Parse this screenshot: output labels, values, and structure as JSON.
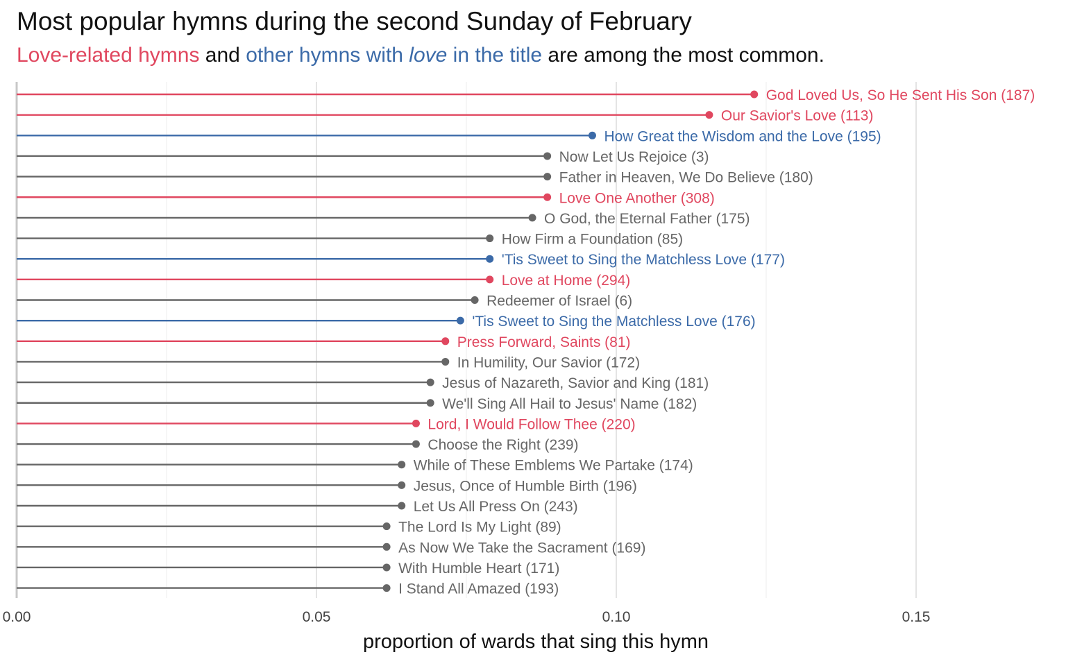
{
  "title": "Most popular hymns during the second Sunday of February",
  "subtitle": {
    "part1": "Love-related hymns",
    "part2": " and ",
    "part3": "other hymns with ",
    "part4": "love",
    "part5": " in the title",
    "part6": " are among the most common."
  },
  "colors": {
    "love_related": "#e0475f",
    "love_in_title": "#3b6aa8",
    "other": "#666666"
  },
  "chart_data": {
    "type": "lollipop",
    "xlabel": "proportion of wards that sing this hymn",
    "xlim": [
      0,
      0.17
    ],
    "xticks": [
      0,
      0.05,
      0.1,
      0.15
    ],
    "xtick_labels": [
      "0.00",
      "0.05",
      "0.10",
      "0.15"
    ],
    "grid": true,
    "items": [
      {
        "label": "God Loved Us, So He Sent His Son (187)",
        "value": 0.123,
        "group": "love_related"
      },
      {
        "label": "Our Savior's Love (113)",
        "value": 0.1155,
        "group": "love_related"
      },
      {
        "label": "How Great the Wisdom and the Love (195)",
        "value": 0.096,
        "group": "love_in_title"
      },
      {
        "label": "Now Let Us Rejoice (3)",
        "value": 0.0885,
        "group": "other"
      },
      {
        "label": "Father in Heaven, We Do Believe (180)",
        "value": 0.0885,
        "group": "other"
      },
      {
        "label": "Love One Another (308)",
        "value": 0.0885,
        "group": "love_related"
      },
      {
        "label": "O God, the Eternal Father (175)",
        "value": 0.086,
        "group": "other"
      },
      {
        "label": "How Firm a Foundation (85)",
        "value": 0.0789,
        "group": "other"
      },
      {
        "label": "'Tis Sweet to Sing the Matchless Love (177)",
        "value": 0.0789,
        "group": "love_in_title"
      },
      {
        "label": "Love at Home (294)",
        "value": 0.0789,
        "group": "love_related"
      },
      {
        "label": "Redeemer of Israel (6)",
        "value": 0.0764,
        "group": "other"
      },
      {
        "label": "'Tis Sweet to Sing the Matchless Love (176)",
        "value": 0.074,
        "group": "love_in_title"
      },
      {
        "label": "Press Forward, Saints (81)",
        "value": 0.0715,
        "group": "love_related"
      },
      {
        "label": "In Humility, Our Savior (172)",
        "value": 0.0715,
        "group": "other"
      },
      {
        "label": "Jesus of Nazareth, Savior and King (181)",
        "value": 0.069,
        "group": "other"
      },
      {
        "label": "We'll Sing All Hail to Jesus' Name (182)",
        "value": 0.069,
        "group": "other"
      },
      {
        "label": "Lord, I Would Follow Thee (220)",
        "value": 0.0666,
        "group": "love_related"
      },
      {
        "label": "Choose the Right (239)",
        "value": 0.0666,
        "group": "other"
      },
      {
        "label": "While of These Emblems We Partake (174)",
        "value": 0.0642,
        "group": "other"
      },
      {
        "label": "Jesus, Once of Humble Birth (196)",
        "value": 0.0642,
        "group": "other"
      },
      {
        "label": "Let Us All Press On (243)",
        "value": 0.0642,
        "group": "other"
      },
      {
        "label": "The Lord Is My Light (89)",
        "value": 0.0617,
        "group": "other"
      },
      {
        "label": "As Now We Take the Sacrament (169)",
        "value": 0.0617,
        "group": "other"
      },
      {
        "label": "With Humble Heart (171)",
        "value": 0.0617,
        "group": "other"
      },
      {
        "label": "I Stand All Amazed (193)",
        "value": 0.0617,
        "group": "other"
      }
    ]
  }
}
